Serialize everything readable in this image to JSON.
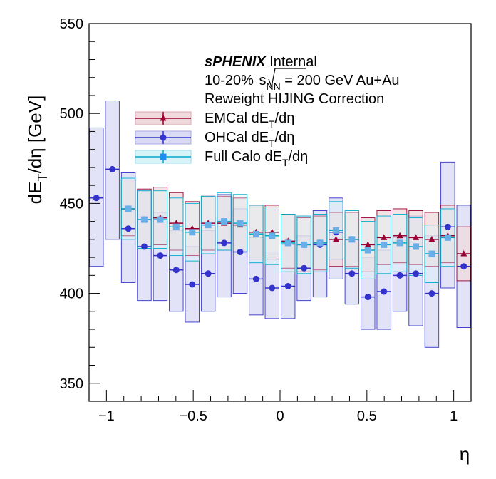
{
  "chart_data": {
    "type": "scatter",
    "xlabel": "η",
    "ylabel_parts": {
      "d": "dE",
      "sub": "T",
      "rest": "/dη [GeV]"
    },
    "xlim": [
      -1.1,
      1.1
    ],
    "ylim": [
      340,
      550
    ],
    "x_ticks": [
      -1,
      -0.5,
      0,
      0.5,
      1
    ],
    "x_tick_labels": [
      "−1",
      "−0.5",
      "0",
      "0.5",
      "1"
    ],
    "y_ticks": [
      350,
      400,
      450,
      500,
      550
    ],
    "y_tick_labels": [
      "350",
      "400",
      "450",
      "500",
      "550"
    ],
    "annotations": {
      "exp": "sPHENIX",
      "status": "Internal",
      "line2_pre": "10-20% ",
      "line2_sub": "NN",
      "line2_s": "s",
      "line2_post": " = 200 GeV Au+Au",
      "line3": "Reweight HIJING Correction"
    },
    "legend_placement": "top-center",
    "series": [
      {
        "name_pre": "EMCal dE",
        "name_sub": "T",
        "name_post": "/dη",
        "color": "#990033",
        "fill": "#efd9dc",
        "marker": "triangle",
        "x": [
          -0.874,
          -0.782,
          -0.69,
          -0.598,
          -0.506,
          -0.414,
          -0.322,
          -0.23,
          -0.138,
          -0.046,
          0.046,
          0.138,
          0.23,
          0.322,
          0.414,
          0.506,
          0.598,
          0.69,
          0.782,
          0.874,
          0.966,
          1.058
        ],
        "y": [
          447,
          441,
          442,
          439,
          436,
          439,
          439,
          438,
          434,
          434,
          429,
          427,
          428,
          430,
          430,
          427,
          431,
          432,
          431,
          430,
          432,
          422
        ],
        "sys_low": [
          432,
          426,
          427,
          424,
          421,
          424,
          424,
          423,
          419,
          419,
          414,
          412,
          413,
          415,
          415,
          412,
          416,
          417,
          416,
          415,
          417,
          407
        ],
        "sys_high": [
          463,
          458,
          459,
          456,
          451,
          454,
          454,
          453,
          449,
          449,
          444,
          442,
          443,
          445,
          445,
          442,
          446,
          447,
          446,
          445,
          449,
          437
        ]
      },
      {
        "name_pre": "OHCal dE",
        "name_sub": "T",
        "name_post": "/dη",
        "color": "#3333cc",
        "fill": "#dadaf5",
        "marker": "circle",
        "x": [
          -1.058,
          -0.966,
          -0.874,
          -0.782,
          -0.69,
          -0.598,
          -0.506,
          -0.414,
          -0.322,
          -0.23,
          -0.138,
          -0.046,
          0.046,
          0.138,
          0.23,
          0.322,
          0.414,
          0.506,
          0.598,
          0.69,
          0.782,
          0.874,
          0.966,
          1.058
        ],
        "y": [
          453,
          469,
          436,
          426,
          421,
          413,
          405,
          411,
          428,
          423,
          408,
          403,
          404,
          414,
          427,
          434,
          411,
          398,
          401,
          410,
          411,
          400,
          437,
          415
        ],
        "sys_low": [
          415,
          430,
          406,
          396,
          396,
          390,
          384,
          390,
          398,
          400,
          388,
          386,
          386,
          396,
          398,
          408,
          394,
          380,
          380,
          390,
          382,
          370,
          403,
          381
        ],
        "sys_high": [
          492,
          507,
          467,
          457,
          445,
          435,
          426,
          435,
          455,
          447,
          431,
          423,
          427,
          432,
          446,
          453,
          430,
          420,
          424,
          431,
          443,
          432,
          473,
          449
        ]
      },
      {
        "name_pre": "Full Calo dE",
        "name_sub": "T",
        "name_post": "/dη",
        "color": "#00aacc",
        "fill": "#d9f4f8",
        "marker": "square",
        "marker_color": "#6aaee8",
        "x": [
          -0.874,
          -0.782,
          -0.69,
          -0.598,
          -0.506,
          -0.414,
          -0.322,
          -0.23,
          -0.138,
          -0.046,
          0.046,
          0.138,
          0.23,
          0.322,
          0.414,
          0.506,
          0.598,
          0.69,
          0.782,
          0.874,
          0.966
        ],
        "y": [
          447,
          441,
          441,
          437,
          434,
          438,
          440,
          439,
          433,
          432,
          428,
          427,
          428,
          435,
          430,
          424,
          427,
          428,
          426,
          422,
          431
        ],
        "sys_low": [
          430,
          425,
          425,
          421,
          418,
          422,
          424,
          423,
          417,
          416,
          412,
          411,
          412,
          419,
          414,
          408,
          411,
          412,
          410,
          406,
          415
        ],
        "sys_high": [
          464,
          457,
          457,
          453,
          450,
          454,
          456,
          455,
          449,
          448,
          444,
          443,
          444,
          451,
          446,
          440,
          443,
          444,
          442,
          438,
          447
        ]
      }
    ]
  }
}
